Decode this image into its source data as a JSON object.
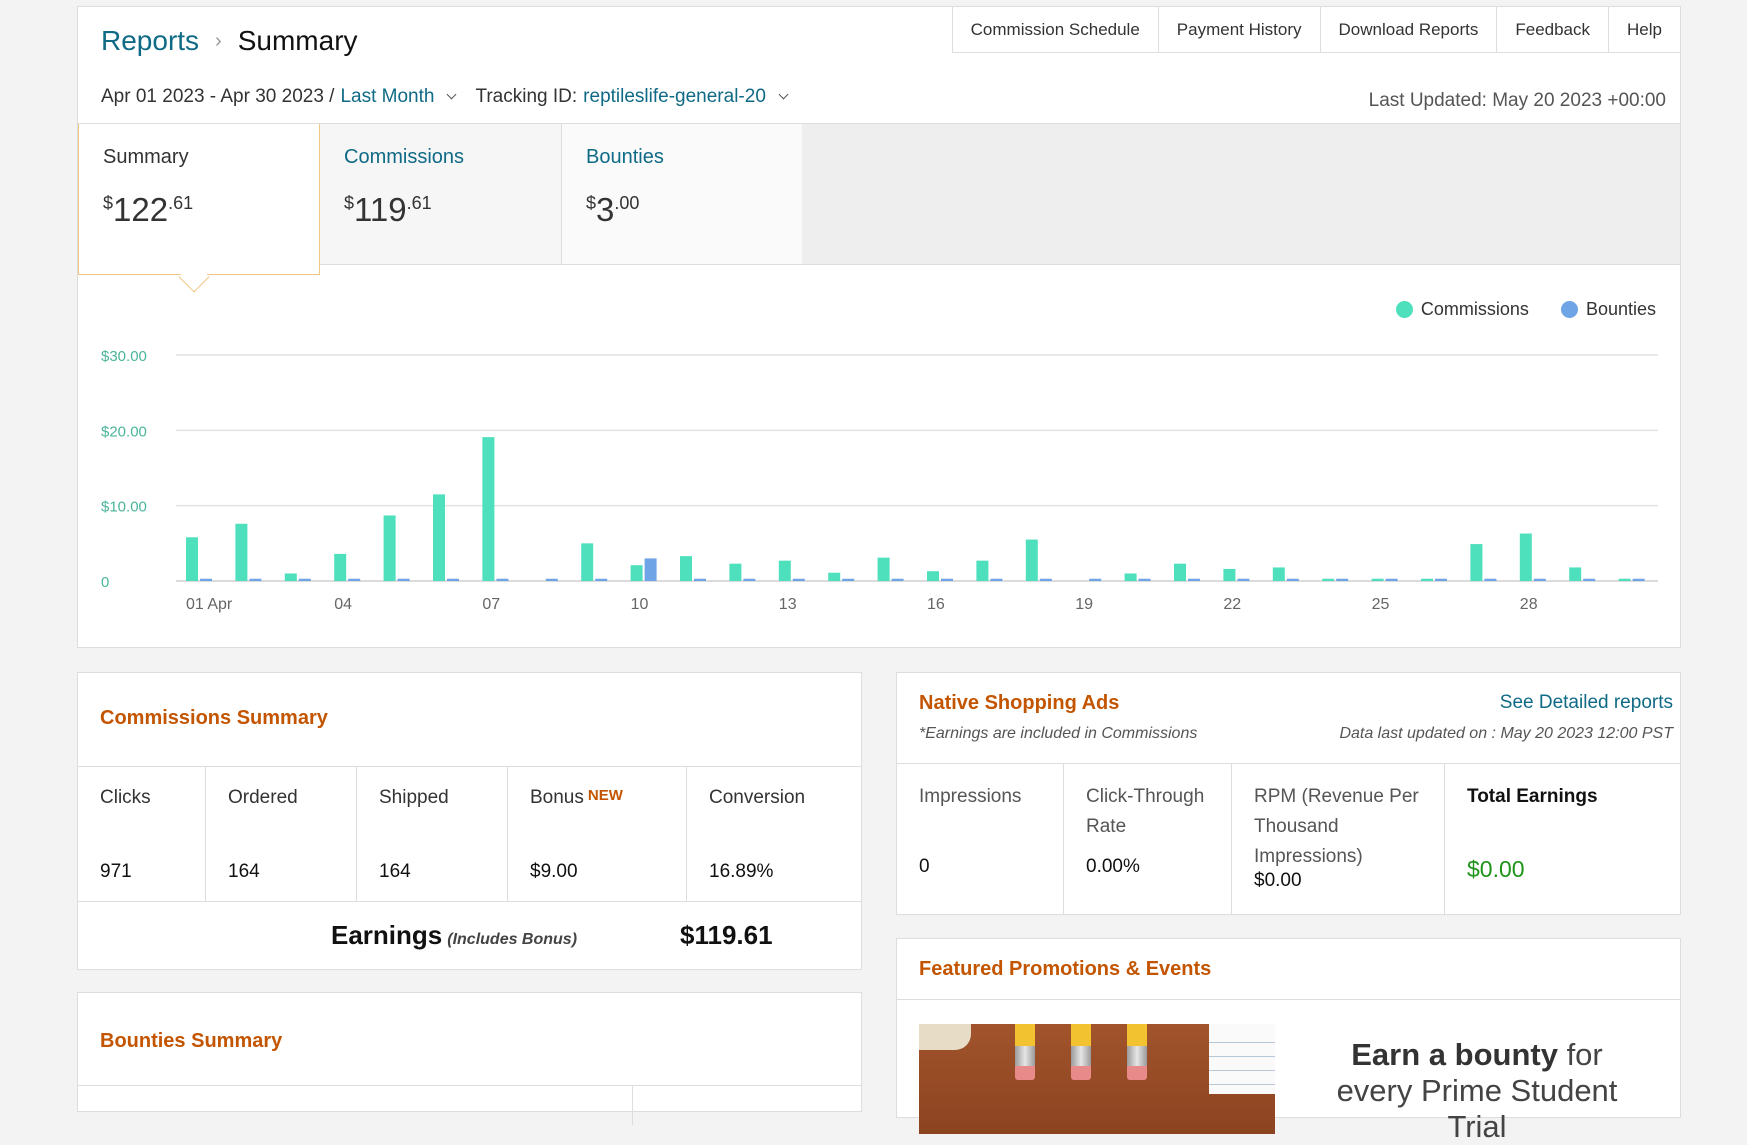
{
  "breadcrumb": {
    "parent": "Reports",
    "separator": "›",
    "current": "Summary"
  },
  "top_links": [
    "Commission Schedule",
    "Payment History",
    "Download Reports",
    "Feedback",
    "Help"
  ],
  "filters": {
    "date_range": "Apr 01 2023 - Apr 30 2023 /",
    "period": "Last Month",
    "tracking_label": "Tracking ID:",
    "tracking_id": "reptileslife-general-20"
  },
  "last_updated": "Last Updated: May 20 2023 +00:00",
  "tabs": [
    {
      "label": "Summary",
      "currency": "$",
      "whole": "122",
      "cents": ".61"
    },
    {
      "label": "Commissions",
      "currency": "$",
      "whole": "119",
      "cents": ".61"
    },
    {
      "label": "Bounties",
      "currency": "$",
      "whole": "3",
      "cents": ".00"
    }
  ],
  "chart_data": {
    "type": "bar",
    "categories": [
      "01 Apr",
      "02",
      "03",
      "04",
      "05",
      "06",
      "07",
      "08",
      "09",
      "10",
      "11",
      "12",
      "13",
      "14",
      "15",
      "16",
      "17",
      "18",
      "19",
      "20",
      "21",
      "22",
      "23",
      "24",
      "25",
      "26",
      "27",
      "28",
      "29",
      "30"
    ],
    "x_tick_labels": [
      "01 Apr",
      "04",
      "07",
      "10",
      "13",
      "16",
      "19",
      "22",
      "25",
      "28"
    ],
    "series": [
      {
        "name": "Commissions",
        "color": "#4ee0bd",
        "values": [
          5.8,
          7.6,
          1.0,
          3.6,
          8.7,
          11.5,
          19.1,
          0.0,
          5.0,
          2.1,
          3.3,
          2.3,
          2.7,
          1.1,
          3.1,
          1.3,
          2.7,
          5.5,
          0.0,
          1.0,
          2.3,
          1.6,
          1.8,
          0.3,
          0.3,
          0.3,
          4.9,
          6.3,
          1.8,
          0.3
        ]
      },
      {
        "name": "Bounties",
        "color": "#6fa4e6",
        "values": [
          0.3,
          0.3,
          0.3,
          0.3,
          0.3,
          0.3,
          0.3,
          0.3,
          0.3,
          3.0,
          0.3,
          0.3,
          0.3,
          0.3,
          0.3,
          0.3,
          0.3,
          0.3,
          0.3,
          0.3,
          0.3,
          0.3,
          0.3,
          0.3,
          0.3,
          0.3,
          0.3,
          0.3,
          0.3,
          0.3
        ]
      }
    ],
    "y_ticks": [
      {
        "value": 0,
        "label": "0"
      },
      {
        "value": 10,
        "label": "$10.00"
      },
      {
        "value": 20,
        "label": "$20.00"
      },
      {
        "value": 30,
        "label": "$30.00"
      }
    ],
    "ylim": [
      0,
      30
    ],
    "grid": true,
    "legend_position": "top-right"
  },
  "commissions_summary": {
    "title": "Commissions Summary",
    "columns": [
      {
        "header": "Clicks",
        "value": "971"
      },
      {
        "header": "Ordered",
        "value": "164"
      },
      {
        "header": "Shipped",
        "value": "164"
      },
      {
        "header": "Bonus",
        "badge": "NEW",
        "value": "$9.00"
      },
      {
        "header": "Conversion",
        "value": "16.89%"
      }
    ],
    "earnings_label": "Earnings",
    "earnings_sub": "(Includes Bonus)",
    "earnings_value": "$119.61"
  },
  "bounties_summary": {
    "title": "Bounties Summary"
  },
  "native_ads": {
    "title": "Native Shopping Ads",
    "note": "*Earnings are included in Commissions",
    "link": "See Detailed reports",
    "data_updated": "Data last updated on : May 20 2023 12:00 PST",
    "columns": [
      {
        "header": "Impressions",
        "value": "0"
      },
      {
        "header": "Click-Through Rate",
        "value": "0.00%"
      },
      {
        "header": "RPM (Revenue Per Thousand Impressions)",
        "value": "$0.00"
      },
      {
        "header": "Total Earnings",
        "value": "$0.00"
      }
    ]
  },
  "promotions": {
    "title": "Featured Promotions & Events",
    "headline_bold": "Earn a bounty",
    "headline_rest": " for every Prime Student Trial"
  }
}
